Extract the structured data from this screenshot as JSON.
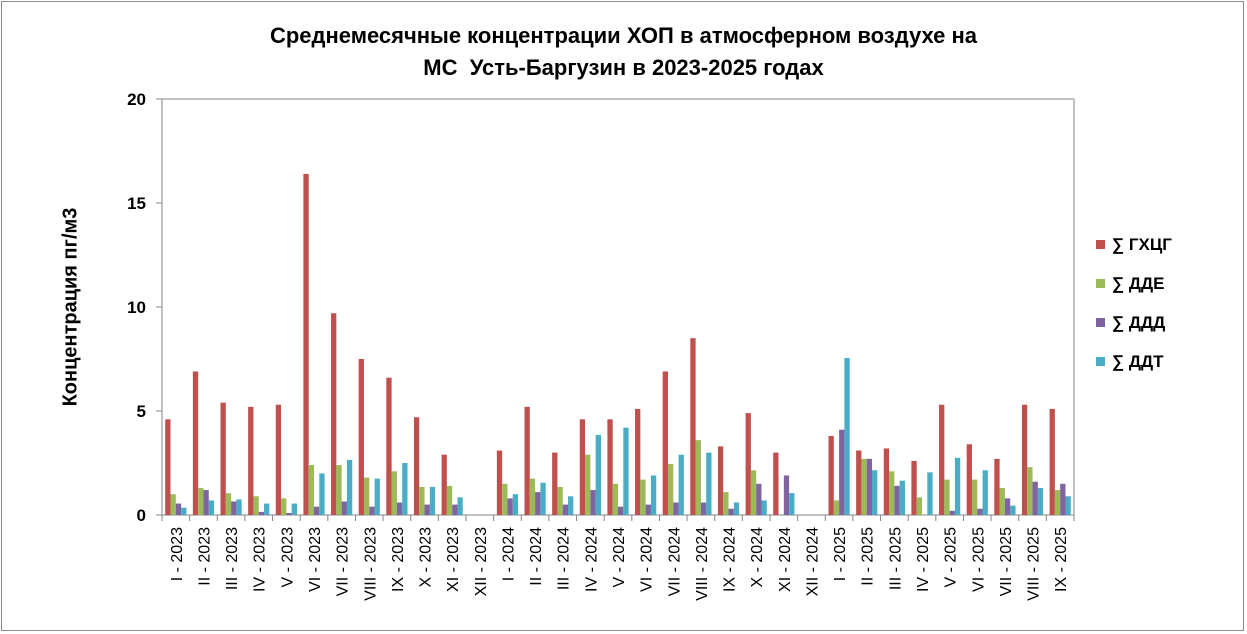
{
  "colors": {
    "gxcg": "#c0504d",
    "dde": "#9bbb59",
    "ddd": "#8064a2",
    "ddt": "#4bacc6"
  },
  "chart_data": {
    "type": "bar",
    "title_line1": "Среднемесячные концентрации ХОП в атмосферном воздухе на",
    "title_line2": "МС  Усть-Баргузин в 2023-2025 годах",
    "xlabel": "",
    "ylabel": "Концентрация пг/м3",
    "ylim": [
      0,
      20
    ],
    "yticks": [
      "0",
      "5",
      "10",
      "15",
      "20"
    ],
    "grid": false,
    "legend_position": "right",
    "categories": [
      "I - 2023",
      "II - 2023",
      "III - 2023",
      "IV - 2023",
      "V - 2023",
      "VI - 2023",
      "VII - 2023",
      "VIII - 2023",
      "IX - 2023",
      "X - 2023",
      "XI - 2023",
      "XII - 2023",
      "I - 2024",
      "II - 2024",
      "III - 2024",
      "IV - 2024",
      "V - 2024",
      "VI - 2024",
      "VII - 2024",
      "VIII - 2024",
      "IX - 2024",
      "X - 2024",
      "XI - 2024",
      "XII - 2024",
      "I - 2025",
      "II - 2025",
      "III - 2025",
      "IV - 2025",
      "V - 2025",
      "VI - 2025",
      "VII - 2025",
      "VIII - 2025",
      "IX - 2025"
    ],
    "series": [
      {
        "name": "∑ ГХЦГ",
        "color_key": "gxcg",
        "values": [
          4.6,
          6.9,
          5.4,
          5.2,
          5.3,
          16.4,
          9.7,
          7.5,
          6.6,
          4.7,
          2.9,
          0,
          3.1,
          5.2,
          3.0,
          4.6,
          4.6,
          5.1,
          6.9,
          8.5,
          3.3,
          4.9,
          3.0,
          0,
          3.8,
          3.1,
          3.2,
          2.6,
          5.3,
          3.4,
          2.7,
          5.3,
          5.1
        ]
      },
      {
        "name": "∑ ДДЕ",
        "color_key": "dde",
        "values": [
          1.0,
          1.3,
          1.05,
          0.9,
          0.8,
          2.4,
          2.4,
          1.8,
          2.1,
          1.35,
          1.4,
          0,
          1.5,
          1.75,
          1.35,
          2.9,
          1.5,
          1.7,
          2.45,
          3.6,
          1.1,
          2.15,
          0,
          0,
          0.7,
          2.7,
          2.1,
          0.85,
          1.7,
          1.7,
          1.3,
          2.3,
          1.2
        ]
      },
      {
        "name": "∑ ДДД",
        "color_key": "ddd",
        "values": [
          0.55,
          1.2,
          0.65,
          0.15,
          0.1,
          0.4,
          0.65,
          0.4,
          0.6,
          0.5,
          0.5,
          0,
          0.8,
          1.1,
          0.5,
          1.2,
          0.4,
          0.5,
          0.6,
          0.6,
          0.3,
          1.5,
          1.9,
          0,
          4.1,
          2.7,
          1.4,
          0,
          0.2,
          0.3,
          0.8,
          1.6,
          1.5
        ]
      },
      {
        "name": "∑ ДДТ",
        "color_key": "ddt",
        "values": [
          0.35,
          0.7,
          0.75,
          0.55,
          0.55,
          2.0,
          2.65,
          1.75,
          2.5,
          1.35,
          0.85,
          0,
          1.0,
          1.55,
          0.9,
          3.85,
          4.2,
          1.9,
          2.9,
          3.0,
          0.6,
          0.7,
          1.05,
          0,
          7.55,
          2.15,
          1.65,
          2.05,
          2.75,
          2.15,
          0.45,
          1.3,
          0.9
        ]
      }
    ]
  }
}
